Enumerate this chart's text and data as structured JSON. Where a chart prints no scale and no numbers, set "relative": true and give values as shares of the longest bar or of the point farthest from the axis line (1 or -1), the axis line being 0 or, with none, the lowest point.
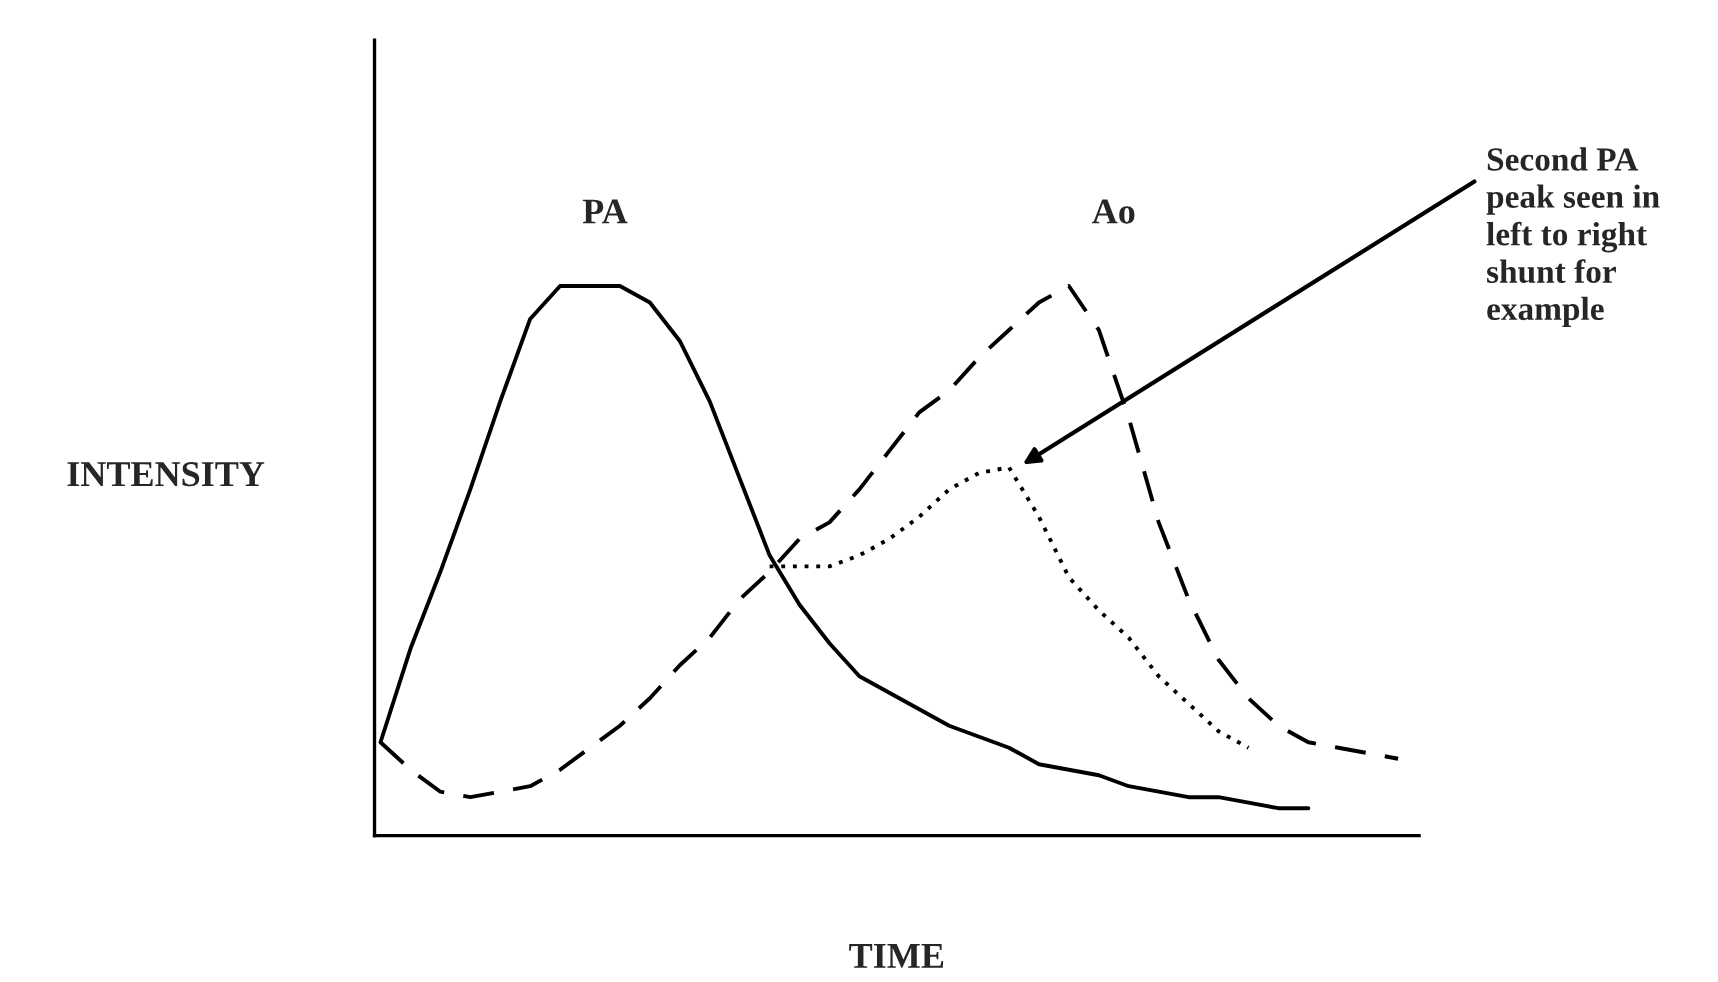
{
  "chart_data": {
    "type": "line",
    "relative": true,
    "xlabel": "TIME",
    "ylabel": "INTENSITY",
    "grid": false,
    "legend": false,
    "marker": "none",
    "categories": [
      null,
      null,
      null,
      null,
      null,
      null,
      null,
      null,
      null,
      null,
      null,
      null,
      null,
      null,
      null,
      null,
      null,
      null,
      null,
      null,
      null,
      null,
      null,
      null,
      null,
      null,
      null,
      null,
      null,
      null,
      null,
      null,
      null,
      null,
      null
    ],
    "series": [
      {
        "name": "PA",
        "color": "#000000",
        "line_style": "solid",
        "values": [
          0.17,
          0.34,
          0.48,
          0.63,
          0.79,
          0.94,
          1.0,
          1.0,
          1.0,
          0.97,
          0.9,
          0.79,
          0.65,
          0.51,
          0.42,
          0.35,
          0.29,
          0.26,
          0.23,
          0.2,
          0.18,
          0.16,
          0.13,
          0.12,
          0.11,
          0.09,
          0.08,
          0.07,
          0.07,
          0.06,
          0.05,
          0.05,
          null,
          null,
          null
        ]
      },
      {
        "name": "Ao",
        "color": "#000000",
        "line_style": "dashed",
        "values": [
          0.17,
          0.12,
          0.08,
          0.07,
          0.08,
          0.09,
          0.12,
          0.16,
          0.2,
          0.25,
          0.31,
          0.36,
          0.43,
          0.48,
          0.54,
          0.57,
          0.63,
          0.7,
          0.77,
          0.81,
          0.87,
          0.92,
          0.97,
          1.0,
          0.92,
          0.76,
          0.57,
          0.43,
          0.32,
          0.25,
          0.2,
          0.17,
          0.16,
          0.15,
          0.14
        ]
      },
      {
        "color": "#000000",
        "line_style": "dotted",
        "values": [
          null,
          null,
          null,
          null,
          null,
          null,
          null,
          null,
          null,
          null,
          null,
          null,
          null,
          0.49,
          0.49,
          0.49,
          0.51,
          0.54,
          0.58,
          0.63,
          0.66,
          0.67,
          0.58,
          0.47,
          0.41,
          0.36,
          0.29,
          0.24,
          0.19,
          0.16,
          null,
          null,
          null,
          null,
          null
        ]
      }
    ],
    "annotations": [
      {
        "text": "Second PA\npeak seen in\nleft to right\nshunt for\nexample"
      }
    ]
  }
}
